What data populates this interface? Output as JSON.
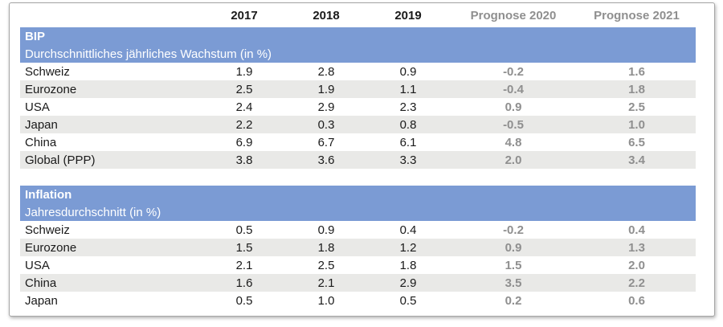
{
  "colors": {
    "header_band": "#7b9bd4",
    "stripe": "#e9e9e7",
    "forecast_text": "#8f8f8f",
    "text": "#1a1a1a",
    "card_border": "#a6a6a6"
  },
  "chart_data": {
    "type": "table",
    "columns": [
      "2017",
      "2018",
      "2019",
      "Prognose 2020",
      "Prognose 2021"
    ],
    "forecast_columns": [
      "Prognose 2020",
      "Prognose 2021"
    ],
    "sections": [
      {
        "title": "BIP",
        "subtitle": "Durchschnittliches jährliches Wachstum (in %)",
        "rows": [
          {
            "label": "Schweiz",
            "values": [
              "1.9",
              "2.8",
              "0.9",
              "-0.2",
              "1.6"
            ]
          },
          {
            "label": "Eurozone",
            "values": [
              "2.5",
              "1.9",
              "1.1",
              "-0.4",
              "1.8"
            ]
          },
          {
            "label": "USA",
            "values": [
              "2.4",
              "2.9",
              "2.3",
              "0.9",
              "2.5"
            ]
          },
          {
            "label": "Japan",
            "values": [
              "2.2",
              "0.3",
              "0.8",
              "-0.5",
              "1.0"
            ]
          },
          {
            "label": "China",
            "values": [
              "6.9",
              "6.7",
              "6.1",
              "4.8",
              "6.5"
            ]
          },
          {
            "label": "Global (PPP)",
            "values": [
              "3.8",
              "3.6",
              "3.3",
              "2.0",
              "3.4"
            ]
          }
        ]
      },
      {
        "title": "Inflation",
        "subtitle": "Jahresdurchschnitt (in %)",
        "rows": [
          {
            "label": "Schweiz",
            "values": [
              "0.5",
              "0.9",
              "0.4",
              "-0.2",
              "0.4"
            ]
          },
          {
            "label": "Eurozone",
            "values": [
              "1.5",
              "1.8",
              "1.2",
              "0.9",
              "1.3"
            ]
          },
          {
            "label": "USA",
            "values": [
              "2.1",
              "2.5",
              "1.8",
              "1.5",
              "2.0"
            ]
          },
          {
            "label": "China",
            "values": [
              "1.6",
              "2.1",
              "2.9",
              "3.5",
              "2.2"
            ]
          },
          {
            "label": "Japan",
            "values": [
              "0.5",
              "1.0",
              "0.5",
              "0.2",
              "0.6"
            ]
          }
        ]
      }
    ]
  }
}
